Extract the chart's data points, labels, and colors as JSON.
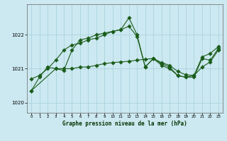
{
  "title": "Graphe pression niveau de la mer (hPa)",
  "bg_color": "#cce8f0",
  "plot_bg_color": "#cce8f0",
  "grid_color": "#aad4e0",
  "line_color": "#1a5c1a",
  "xlim": [
    -0.5,
    23.5
  ],
  "ylim": [
    1019.7,
    1022.9
  ],
  "yticks": [
    1020,
    1021,
    1022
  ],
  "xticks": [
    0,
    1,
    2,
    3,
    4,
    5,
    6,
    7,
    8,
    9,
    10,
    11,
    12,
    13,
    14,
    15,
    16,
    17,
    18,
    19,
    20,
    21,
    22,
    23
  ],
  "series1_x": [
    0,
    1,
    2,
    3,
    4,
    5,
    6,
    7,
    8,
    9,
    10,
    11,
    12,
    13,
    14,
    15,
    16,
    17,
    18,
    19,
    20,
    21,
    22,
    23
  ],
  "series1_y": [
    1020.7,
    1020.8,
    1021.0,
    1021.25,
    1021.55,
    1021.7,
    1021.75,
    1021.85,
    1021.9,
    1022.0,
    1022.1,
    1022.15,
    1022.25,
    1021.95,
    1021.05,
    1021.3,
    1021.15,
    1021.05,
    1020.8,
    1020.75,
    1020.8,
    1021.35,
    1021.45,
    1021.65
  ],
  "series2_x": [
    0,
    1,
    2,
    3,
    4,
    5,
    6,
    7,
    8,
    9,
    10,
    11,
    12,
    13,
    14,
    15,
    16,
    17,
    18,
    19,
    20,
    21,
    22,
    23
  ],
  "series2_y": [
    1020.35,
    1020.75,
    1021.05,
    1021.0,
    1020.95,
    1021.55,
    1021.85,
    1021.9,
    1022.0,
    1022.05,
    1022.1,
    1022.15,
    1022.5,
    1022.0,
    1021.05,
    1021.3,
    1021.1,
    1021.0,
    1020.8,
    1020.75,
    1020.75,
    1021.3,
    1021.25,
    1021.6
  ],
  "series3_x": [
    0,
    3,
    4,
    5,
    6,
    7,
    8,
    9,
    10,
    11,
    12,
    13,
    14,
    15,
    16,
    17,
    18,
    19,
    20,
    21,
    22,
    23
  ],
  "series3_y": [
    1020.35,
    1021.0,
    1021.0,
    1021.0,
    1021.05,
    1021.05,
    1021.1,
    1021.15,
    1021.18,
    1021.2,
    1021.22,
    1021.25,
    1021.28,
    1021.3,
    1021.18,
    1021.1,
    1020.92,
    1020.82,
    1020.8,
    1021.05,
    1021.2,
    1021.55
  ]
}
